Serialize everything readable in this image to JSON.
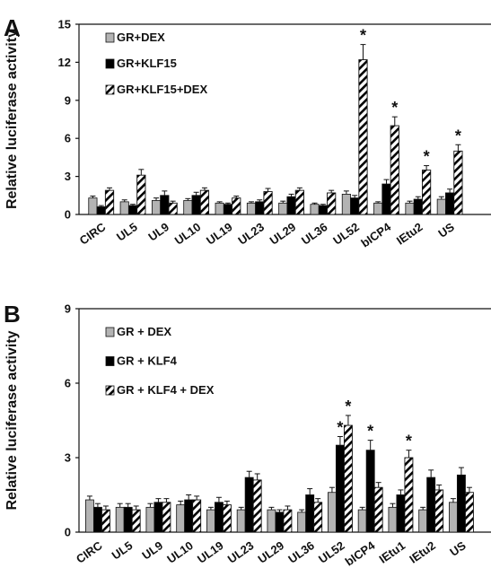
{
  "chart_data": [
    {
      "panel": "A",
      "type": "bar",
      "ylabel": "Relative luciferase activity",
      "ylim": [
        0,
        15
      ],
      "yticks": [
        0,
        3,
        6,
        9,
        12,
        15
      ],
      "legend_position": "top-left",
      "categories": [
        "CIRC",
        "UL5",
        "UL9",
        "UL10",
        "UL19",
        "UL23",
        "UL29",
        "UL36",
        "UL52",
        "bICP4",
        "IEtu2",
        "US"
      ],
      "series": [
        {
          "name": "GR+DEX",
          "pattern": "gray",
          "color": "#b3b3b3",
          "values": [
            1.3,
            1.0,
            1.1,
            1.1,
            0.9,
            0.9,
            0.9,
            0.8,
            1.6,
            0.9,
            0.9,
            1.2
          ],
          "errors": [
            0.15,
            0.15,
            0.2,
            0.15,
            0.1,
            0.1,
            0.15,
            0.1,
            0.25,
            0.1,
            0.15,
            0.2
          ]
        },
        {
          "name": "GR+KLF15",
          "pattern": "black",
          "color": "#000000",
          "values": [
            0.6,
            0.7,
            1.5,
            1.5,
            0.8,
            1.0,
            1.4,
            0.7,
            1.3,
            2.4,
            1.2,
            1.7
          ],
          "errors": [
            0.1,
            0.1,
            0.35,
            0.25,
            0.1,
            0.15,
            0.2,
            0.1,
            0.2,
            0.35,
            0.2,
            0.3
          ]
        },
        {
          "name": "GR+KLF15+DEX",
          "pattern": "hatch",
          "color": "#000000",
          "values": [
            1.9,
            3.1,
            0.9,
            1.9,
            1.3,
            1.8,
            1.9,
            1.7,
            12.2,
            7.0,
            3.5,
            5.0
          ],
          "errors": [
            0.2,
            0.45,
            0.15,
            0.2,
            0.15,
            0.25,
            0.2,
            0.2,
            1.2,
            0.7,
            0.35,
            0.5
          ]
        }
      ],
      "annotations": [
        {
          "text": "*",
          "category": "UL52",
          "series": 2
        },
        {
          "text": "*",
          "category": "bICP4",
          "series": 2
        },
        {
          "text": "*",
          "category": "IEtu2",
          "series": 2
        },
        {
          "text": "*",
          "category": "US",
          "series": 2
        }
      ]
    },
    {
      "panel": "B",
      "type": "bar",
      "ylabel": "Relative luciferase activity",
      "ylim": [
        0,
        9
      ],
      "yticks": [
        0,
        3,
        6,
        9
      ],
      "legend_position": "top-left",
      "categories": [
        "CIRC",
        "UL5",
        "UL9",
        "UL10",
        "UL19",
        "UL23",
        "UL29",
        "UL36",
        "UL52",
        "bICP4",
        "IEtu1",
        "IEtu2",
        "US"
      ],
      "series": [
        {
          "name": "GR + DEX",
          "pattern": "gray",
          "color": "#b3b3b3",
          "values": [
            1.3,
            1.0,
            1.0,
            1.1,
            0.9,
            0.9,
            0.9,
            0.8,
            1.6,
            0.9,
            1.0,
            0.9,
            1.2
          ],
          "errors": [
            0.15,
            0.15,
            0.15,
            0.15,
            0.1,
            0.1,
            0.1,
            0.1,
            0.2,
            0.1,
            0.15,
            0.1,
            0.15
          ]
        },
        {
          "name": "GR + KLF4",
          "pattern": "black",
          "color": "#000000",
          "values": [
            1.0,
            1.0,
            1.2,
            1.3,
            1.2,
            2.2,
            0.8,
            1.5,
            3.5,
            3.3,
            1.5,
            2.2,
            2.3
          ],
          "errors": [
            0.15,
            0.15,
            0.15,
            0.2,
            0.2,
            0.25,
            0.1,
            0.25,
            0.35,
            0.4,
            0.2,
            0.3,
            0.3
          ]
        },
        {
          "name": "GR + KLF4 + DEX",
          "pattern": "hatch",
          "color": "#000000",
          "values": [
            0.9,
            0.9,
            1.2,
            1.3,
            1.1,
            2.1,
            0.9,
            1.2,
            4.3,
            1.8,
            3.0,
            1.7,
            1.6
          ],
          "errors": [
            0.15,
            0.15,
            0.15,
            0.15,
            0.15,
            0.25,
            0.15,
            0.15,
            0.4,
            0.2,
            0.3,
            0.2,
            0.2
          ]
        }
      ],
      "annotations": [
        {
          "text": "*",
          "category": "UL52",
          "series": 1
        },
        {
          "text": "*",
          "category": "UL52",
          "series": 2
        },
        {
          "text": "*",
          "category": "bICP4",
          "series": 1
        },
        {
          "text": "*",
          "category": "IEtu1",
          "series": 2
        }
      ]
    }
  ]
}
